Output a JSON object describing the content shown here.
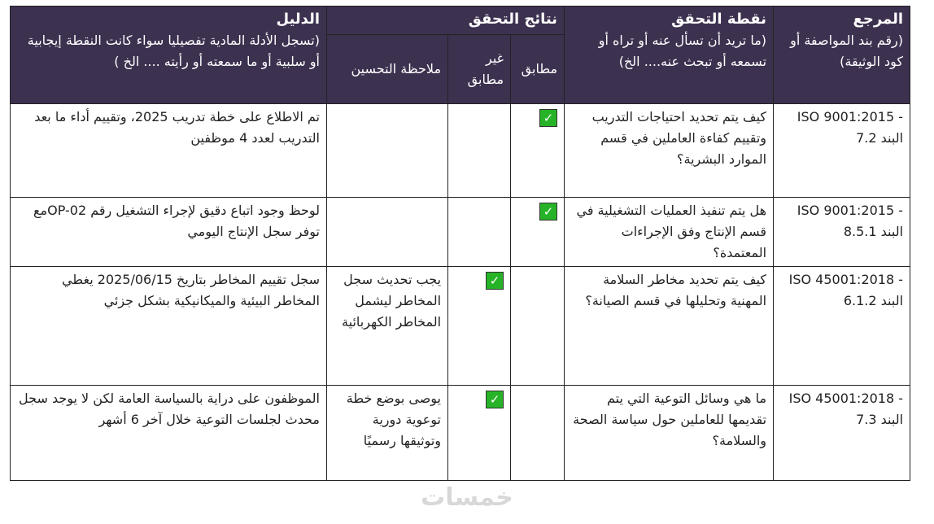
{
  "header": {
    "reference": {
      "title": "المرجع",
      "subtitle": "(رقم بند المواصفة أو كود الوثيقة)"
    },
    "check_point": {
      "title": "نقطة التحقق",
      "subtitle": "(ما تريد أن تسأل عنه أو تراه أو تسمعه أو تبحث عنه.... الخ)"
    },
    "results": {
      "title": "نتائج التحقق",
      "match": "مطابق",
      "non_match": "غير مطابق",
      "improvement": "ملاحظة التحسين"
    },
    "evidence": {
      "title": "الدليل",
      "subtitle": "(تسجل الأدلة المادية تفصيليا سواء كانت النقطة إيجابية أو سلبية أو ما سمعته أو رأيته .... الخ )"
    }
  },
  "rows": [
    {
      "reference": "- ISO 9001:2015 البند 7.2",
      "check_point": "كيف يتم تحديد احتياجات التدريب وتقييم كفاءة العاملين في قسم الموارد البشرية؟",
      "match": true,
      "non_match": false,
      "improvement": "",
      "evidence": "تم الاطلاع على خطة تدريب 2025، وتقييم أداء ما بعد التدريب لعدد 4 موظفين"
    },
    {
      "reference": "- ISO 9001:2015 البند 8.5.1",
      "check_point": "هل يتم تنفيذ العمليات التشغيلية في قسم الإنتاج وفق الإجراءات المعتمدة؟",
      "match": true,
      "non_match": false,
      "improvement": "",
      "evidence": "لوحظ وجود اتباع دقيق لإجراء التشغيل رقم OP-02مع توفر سجل الإنتاج اليومي"
    },
    {
      "reference": "- ISO 45001:2018 البند 6.1.2",
      "check_point": "كيف يتم تحديد مخاطر السلامة المهنية وتحليلها في قسم الصيانة؟",
      "match": false,
      "non_match": true,
      "improvement": "يجب تحديث سجل المخاطر ليشمل المخاطر الكهربائية",
      "evidence": "سجل تقييم المخاطر بتاريخ 2025/06/15 يغطي المخاطر البيئية والميكانيكية بشكل جزئي"
    },
    {
      "reference": "- ISO 45001:2018 البند 7.3",
      "check_point": "ما هي وسائل التوعية التي يتم تقديمها للعاملين حول سياسة الصحة والسلامة؟",
      "match": false,
      "non_match": true,
      "improvement": "يوصى بوضع خطة توعوية دورية وتوثيقها رسميًا",
      "evidence": "الموظفون على دراية بالسياسة العامة لكن لا يوجد سجل محدث لجلسات التوعية خلال آخر 6 أشهر"
    }
  ],
  "check_color": "#27b327",
  "header_color": "#3d3150",
  "watermark": "خمسات"
}
